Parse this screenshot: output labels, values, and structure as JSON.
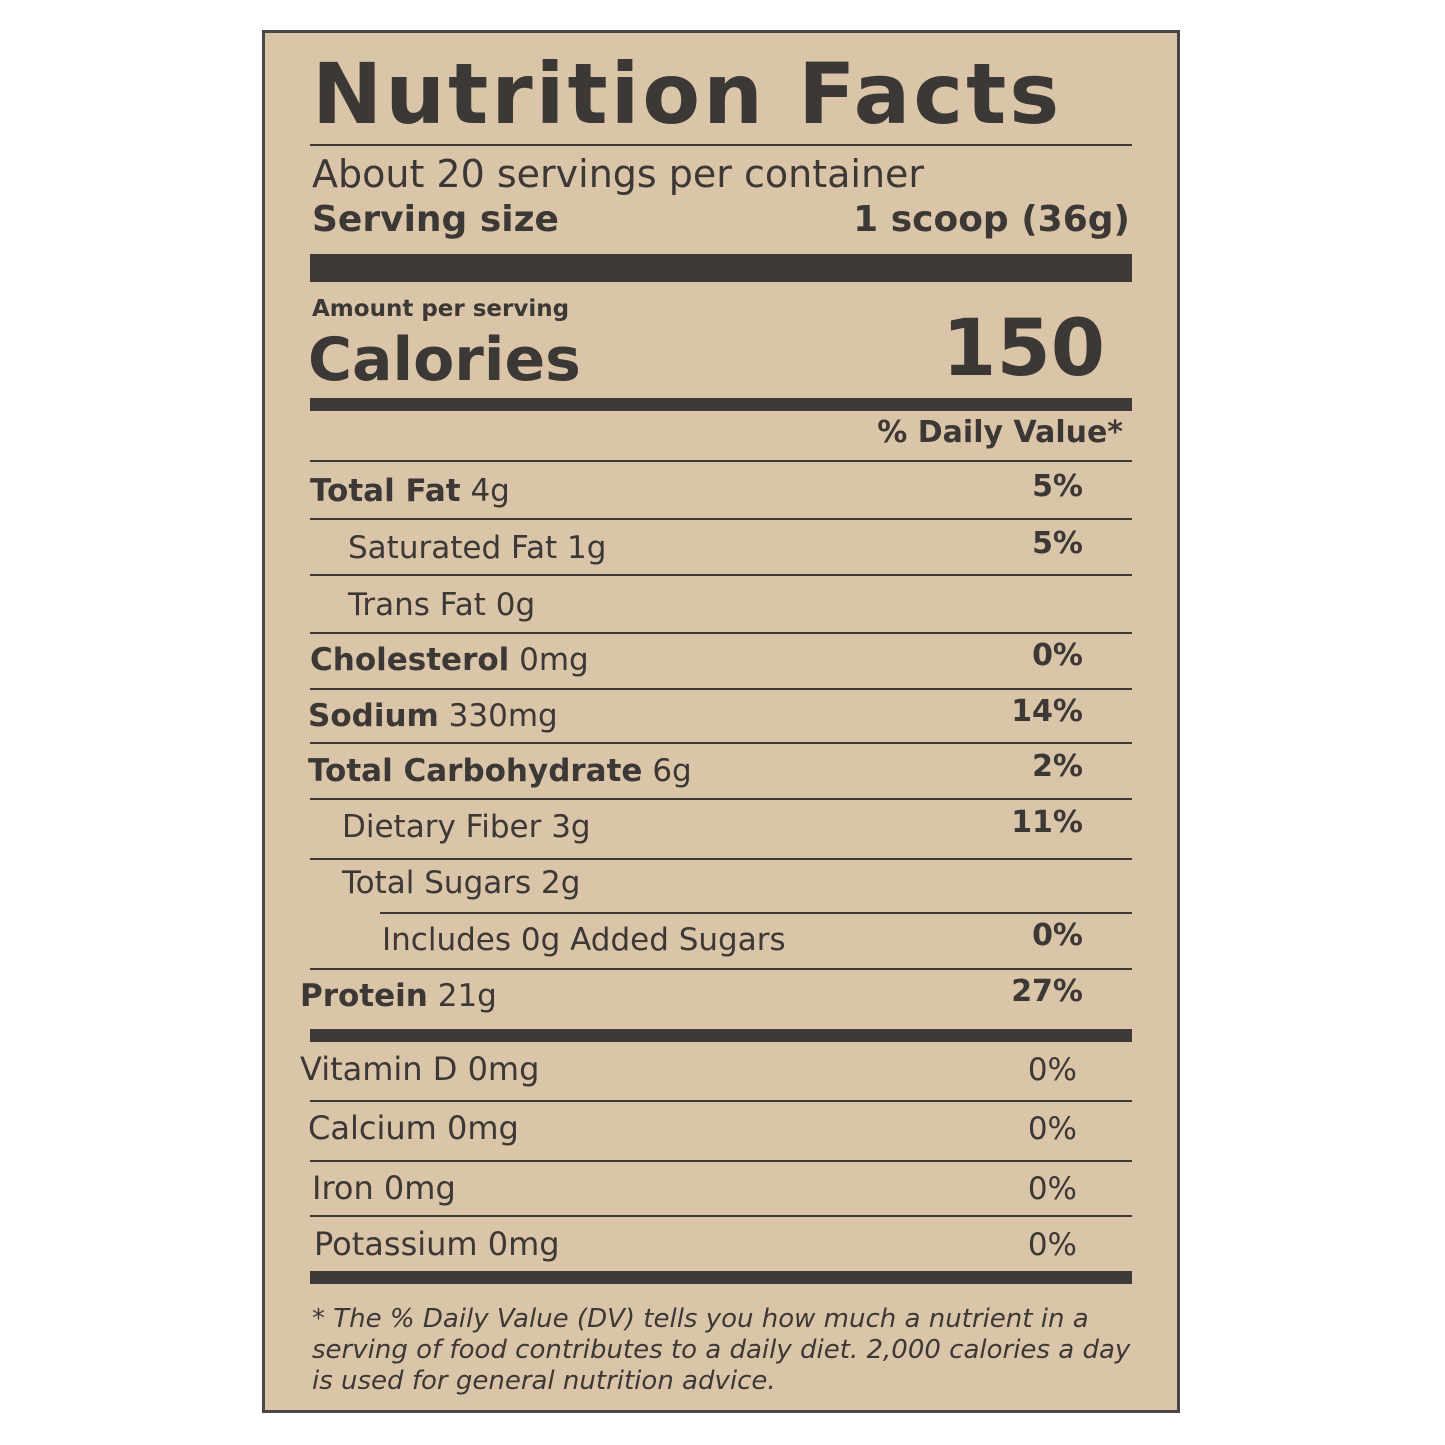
{
  "title": "Nutrition Facts",
  "servings": "About 20 servings per container",
  "serving_size": {
    "label": "Serving size",
    "value": "1 scoop (36g)"
  },
  "amount_per_serving": "Amount per serving",
  "calories": {
    "label": "Calories",
    "value": "150"
  },
  "dv_header": "% Daily Value*",
  "nutrients": [
    {
      "name": "Total Fat",
      "amount": "4g",
      "dv": "5%"
    },
    {
      "name": "Saturated Fat",
      "amount": "1g",
      "dv": "5%"
    },
    {
      "name": "Trans Fat",
      "amount": "0g",
      "dv": ""
    },
    {
      "name": "Cholesterol",
      "amount": "0mg",
      "dv": "0%"
    },
    {
      "name": "Sodium",
      "amount": "330mg",
      "dv": "14%"
    },
    {
      "name": "Total Carbohydrate",
      "amount": "6g",
      "dv": "2%"
    },
    {
      "name": "Dietary Fiber",
      "amount": "3g",
      "dv": "11%"
    },
    {
      "name": "Total Sugars",
      "amount": "2g",
      "dv": ""
    },
    {
      "name": "Includes 0g Added Sugars",
      "amount": "",
      "dv": "0%"
    },
    {
      "name": "Protein",
      "amount": "21g",
      "dv": "27%"
    }
  ],
  "vitamins": [
    {
      "name": "Vitamin D",
      "amount": "0mg",
      "dv": "0%"
    },
    {
      "name": "Calcium",
      "amount": "0mg",
      "dv": "0%"
    },
    {
      "name": "Iron",
      "amount": "0mg",
      "dv": "0%"
    },
    {
      "name": "Potassium",
      "amount": "0mg",
      "dv": "0%"
    }
  ],
  "footnote": "* The % Daily Value (DV) tells you how much a nutrient in a serving of food contributes to a daily diet. 2,000 calories a day is used for general nutrition advice.",
  "colors": {
    "background": "#dbc5a8",
    "ink": "#3b3836"
  }
}
